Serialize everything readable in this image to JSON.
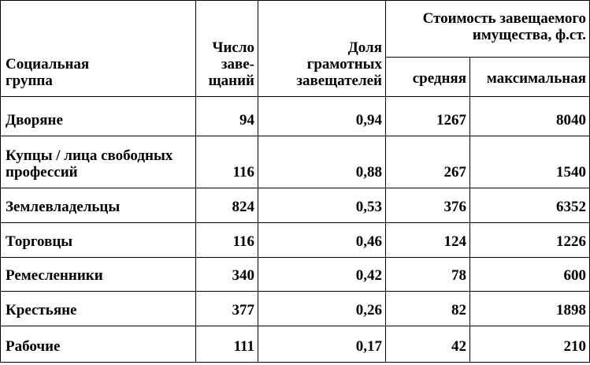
{
  "table": {
    "header": {
      "group": "Социальная\nгруппа",
      "count": "Число\nзаве-\nщаний",
      "share": "Доля\nграмотных\nзавещателей",
      "value": "Стоимость завещаемого\nимущества, ф.ст.",
      "avg": "средняя",
      "max": "максимальная"
    },
    "rows": [
      [
        "Дворяне",
        "94",
        "0,94",
        "1267",
        "8040"
      ],
      [
        "Купцы / лица свободных профессий",
        "116",
        "0,88",
        "267",
        "1540"
      ],
      [
        "Землевладельцы",
        "824",
        "0,53",
        "376",
        "6352"
      ],
      [
        "Торговцы",
        "116",
        "0,46",
        "124",
        "1226"
      ],
      [
        "Ремесленники",
        "340",
        "0,42",
        "78",
        "600"
      ],
      [
        "Крестьяне",
        "377",
        "0,26",
        "82",
        "1898"
      ],
      [
        "Рабочие",
        "111",
        "0,17",
        "42",
        "210"
      ]
    ]
  }
}
